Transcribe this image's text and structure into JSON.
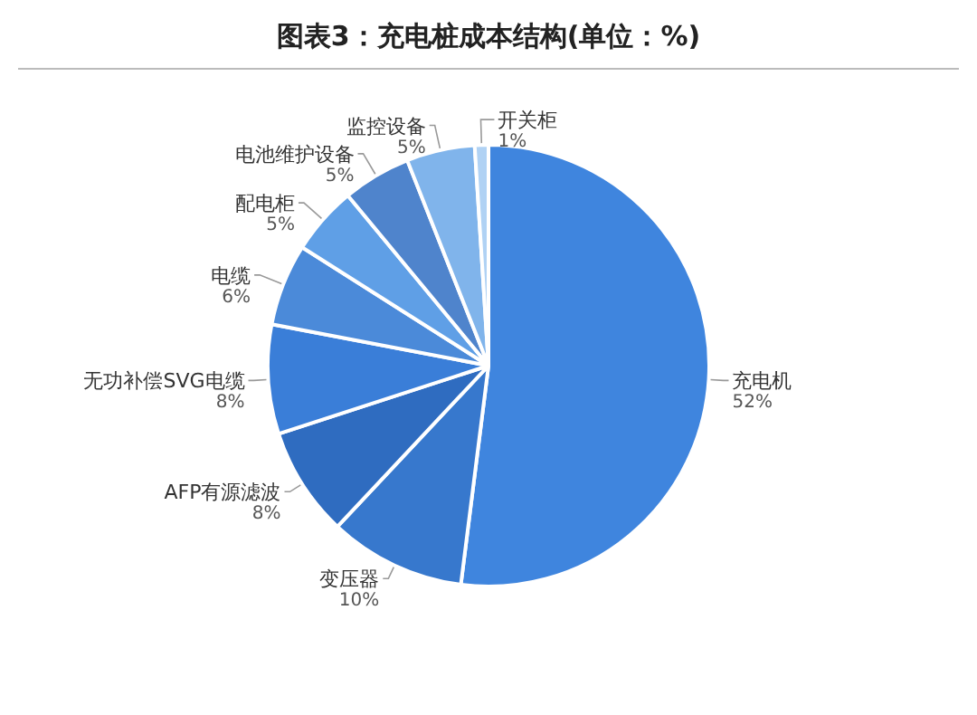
{
  "chart_data": {
    "type": "pie",
    "title": "图表3：充电桩成本结构(单位：%)",
    "categories": [
      "充电机",
      "变压器",
      "AFP有源滤波",
      "无功补偿SVG电缆",
      "电缆",
      "配电柜",
      "电池维护设备",
      "监控设备",
      "开关柜"
    ],
    "values": [
      52,
      10,
      8,
      8,
      6,
      5,
      5,
      5,
      1
    ],
    "colors": [
      "#3f85de",
      "#3778cd",
      "#2f6cc0",
      "#3a7ed8",
      "#4b8ad9",
      "#5f9fe6",
      "#4f84cc",
      "#80b4eb",
      "#b0d2f4"
    ],
    "value_labels": [
      "52%",
      "10%",
      "8%",
      "8%",
      "6%",
      "5%",
      "5%",
      "5%",
      "1%"
    ]
  }
}
